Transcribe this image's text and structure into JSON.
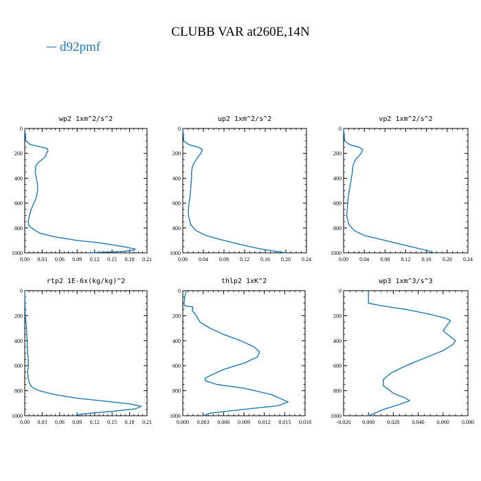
{
  "title": "CLUBB VAR at260E,14N",
  "legend": {
    "label": "d92pmf",
    "color": "#1f77b4"
  },
  "chart_data": [
    {
      "type": "line",
      "title": "wp2  1xm^2/s^2",
      "xlim": [
        0,
        0.21
      ],
      "xticks": [
        "0.00",
        "0.03",
        "0.06",
        "0.09",
        "0.12",
        "0.15",
        "0.18",
        "0.21"
      ],
      "ylim": [
        0,
        1000
      ],
      "yticks": [
        "0",
        "200",
        "400",
        "600",
        "800",
        "1000"
      ],
      "series": [
        {
          "color": "#1f77b4",
          "x": [
            0.0,
            0.002,
            0.01,
            0.03,
            0.038,
            0.04,
            0.035,
            0.024,
            0.019,
            0.018,
            0.02,
            0.022,
            0.022,
            0.02,
            0.016,
            0.011,
            0.008,
            0.006,
            0.007,
            0.012,
            0.025,
            0.05,
            0.09,
            0.13,
            0.17,
            0.19,
            0.185,
            0.165,
            0.13,
            0.11
          ],
          "y": [
            0,
            100,
            130,
            150,
            160,
            175,
            230,
            270,
            300,
            350,
            400,
            450,
            500,
            550,
            600,
            650,
            700,
            750,
            780,
            800,
            840,
            870,
            900,
            920,
            950,
            970,
            980,
            990,
            995,
            1000
          ]
        }
      ]
    },
    {
      "type": "line",
      "title": "up2  1xm^2/s^2",
      "xlim": [
        0,
        0.24
      ],
      "xticks": [
        "0.00",
        "0.04",
        "0.08",
        "0.12",
        "0.16",
        "0.20",
        "0.24"
      ],
      "ylim": [
        0,
        1000
      ],
      "yticks": [
        "0",
        "200",
        "400",
        "600",
        "800",
        "1000"
      ],
      "series": [
        {
          "color": "#1f77b4",
          "x": [
            0.0,
            0.002,
            0.012,
            0.03,
            0.038,
            0.035,
            0.026,
            0.019,
            0.017,
            0.017,
            0.016,
            0.015,
            0.014,
            0.012,
            0.011,
            0.011,
            0.015,
            0.025,
            0.045,
            0.07,
            0.1,
            0.13,
            0.16,
            0.185,
            0.2
          ],
          "y": [
            0,
            100,
            130,
            150,
            170,
            200,
            250,
            300,
            350,
            400,
            450,
            500,
            550,
            600,
            650,
            700,
            770,
            820,
            860,
            890,
            920,
            950,
            975,
            990,
            1000
          ]
        }
      ]
    },
    {
      "type": "line",
      "title": "vp2  1xm^2/s^2",
      "xlim": [
        0,
        0.24
      ],
      "xticks": [
        "0.00",
        "0.04",
        "0.08",
        "0.12",
        "0.16",
        "0.20",
        "0.24"
      ],
      "ylim": [
        0,
        1000
      ],
      "yticks": [
        "0",
        "200",
        "400",
        "600",
        "800",
        "1000"
      ],
      "series": [
        {
          "color": "#1f77b4",
          "x": [
            0.0,
            0.002,
            0.012,
            0.03,
            0.037,
            0.034,
            0.023,
            0.018,
            0.017,
            0.015,
            0.013,
            0.011,
            0.009,
            0.008,
            0.007,
            0.006,
            0.01,
            0.02,
            0.04,
            0.07,
            0.1,
            0.13,
            0.16,
            0.175
          ],
          "y": [
            0,
            100,
            130,
            150,
            170,
            200,
            250,
            300,
            350,
            400,
            450,
            500,
            550,
            600,
            650,
            700,
            770,
            820,
            860,
            890,
            920,
            950,
            980,
            1000
          ]
        }
      ]
    },
    {
      "type": "line",
      "title": "rtp2  1E-6x(kg/kg)^2",
      "xlim": [
        0,
        0.21
      ],
      "xticks": [
        "0.00",
        "0.03",
        "0.06",
        "0.09",
        "0.12",
        "0.15",
        "0.18",
        "0.21"
      ],
      "ylim": [
        0,
        1000
      ],
      "yticks": [
        "0",
        "200",
        "400",
        "600",
        "800",
        "1000"
      ],
      "series": [
        {
          "color": "#1f77b4",
          "x": [
            0.0,
            0.001,
            0.003,
            0.004,
            0.005,
            0.006,
            0.006,
            0.005,
            0.006,
            0.008,
            0.012,
            0.025,
            0.05,
            0.09,
            0.14,
            0.18,
            0.2,
            0.19,
            0.15,
            0.1,
            0.085
          ],
          "y": [
            0,
            200,
            300,
            400,
            500,
            550,
            600,
            650,
            700,
            740,
            770,
            800,
            830,
            860,
            885,
            905,
            925,
            945,
            965,
            985,
            1000
          ]
        }
      ]
    },
    {
      "type": "line",
      "title": "thlp2  1xK^2",
      "xlim": [
        0,
        0.018
      ],
      "xticks": [
        "0.000",
        "0.003",
        "0.006",
        "0.009",
        "0.012",
        "0.015",
        "0.018"
      ],
      "ylim": [
        0,
        1000
      ],
      "yticks": [
        "0",
        "200",
        "400",
        "600",
        "800",
        "1000"
      ],
      "series": [
        {
          "color": "#1f77b4",
          "x": [
            0.0005,
            0.0003,
            0.0002,
            0.0002,
            0.0015,
            0.0014,
            0.002,
            0.0025,
            0.004,
            0.006,
            0.0085,
            0.0105,
            0.0113,
            0.011,
            0.009,
            0.006,
            0.004,
            0.0033,
            0.0033,
            0.005,
            0.009,
            0.013,
            0.0155,
            0.014,
            0.008,
            0.004,
            0.003
          ],
          "y": [
            0,
            50,
            100,
            120,
            130,
            160,
            200,
            250,
            300,
            350,
            400,
            450,
            490,
            530,
            580,
            630,
            680,
            700,
            720,
            750,
            780,
            830,
            890,
            920,
            955,
            980,
            1000
          ]
        }
      ]
    },
    {
      "type": "line",
      "title": "wp3  1xm^3/s^3",
      "xlim": [
        -0.02,
        0.08
      ],
      "xticks": [
        "-0.020",
        "0.000",
        "0.020",
        "0.040",
        "0.060",
        "0.080"
      ],
      "ylim": [
        0,
        1000
      ],
      "yticks": [
        "0",
        "200",
        "400",
        "600",
        "800",
        "1000"
      ],
      "series": [
        {
          "color": "#1f77b4",
          "x": [
            0.0,
            0.0,
            0.0,
            0.01,
            0.03,
            0.05,
            0.062,
            0.066,
            0.063,
            0.06,
            0.065,
            0.07,
            0.068,
            0.06,
            0.045,
            0.03,
            0.018,
            0.012,
            0.012,
            0.02,
            0.03,
            0.033,
            0.025,
            0.012,
            0.005,
            0.0
          ],
          "y": [
            0,
            50,
            100,
            120,
            150,
            190,
            220,
            240,
            280,
            320,
            360,
            400,
            430,
            480,
            540,
            600,
            660,
            710,
            760,
            820,
            860,
            880,
            910,
            950,
            980,
            1000
          ]
        }
      ]
    }
  ]
}
